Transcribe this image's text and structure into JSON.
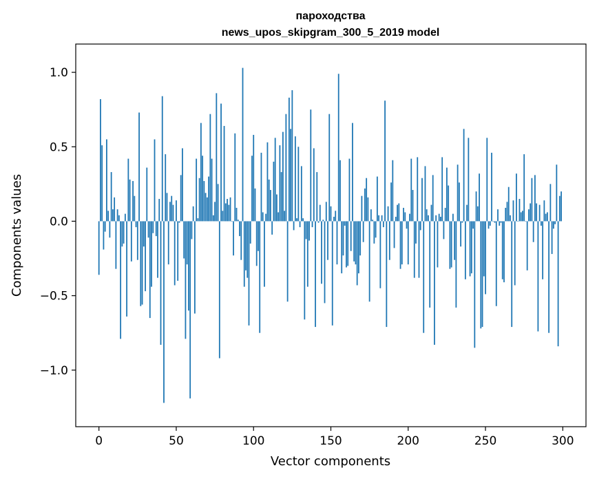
{
  "chart_data": {
    "type": "bar",
    "title": "пароходства",
    "subtitle": "news_upos_skipgram_300_5_2019 model",
    "xlabel": "Vector components",
    "ylabel": "Components values",
    "xlim": [
      -15,
      315
    ],
    "ylim": [
      -1.38,
      1.19
    ],
    "x_ticks": [
      0,
      50,
      100,
      150,
      200,
      250,
      300
    ],
    "x_tick_labels": [
      "0",
      "50",
      "100",
      "150",
      "200",
      "250",
      "300"
    ],
    "y_ticks": [
      -1.0,
      -0.5,
      0.0,
      0.5,
      1.0
    ],
    "y_tick_labels": [
      "−1.0",
      "−0.5",
      "0.0",
      "0.5",
      "1.0"
    ],
    "bar_color": "#1f77b4",
    "grid": false,
    "legend": "none",
    "x": "0..299 (component index)",
    "values": [
      -0.36,
      0.82,
      0.51,
      -0.19,
      -0.07,
      0.55,
      0.07,
      -0.11,
      0.33,
      0.08,
      0.16,
      -0.32,
      0.08,
      0.04,
      -0.79,
      -0.17,
      -0.15,
      0.05,
      -0.64,
      0.42,
      0.28,
      -0.27,
      0.27,
      0.17,
      -0.04,
      -0.26,
      0.73,
      -0.57,
      -0.56,
      -0.17,
      -0.47,
      0.36,
      -0.11,
      -0.65,
      -0.44,
      -0.08,
      0.55,
      -0.1,
      -0.38,
      0.15,
      -0.83,
      0.84,
      -1.22,
      0.45,
      0.19,
      -0.29,
      0.13,
      0.17,
      0.11,
      -0.43,
      0.14,
      -0.4,
      -0.01,
      0.31,
      0.49,
      -0.25,
      -0.79,
      -0.29,
      -0.6,
      -1.19,
      -0.12,
      0.1,
      -0.62,
      0.42,
      0.02,
      0.29,
      0.66,
      0.44,
      0.27,
      0.19,
      0.16,
      0.3,
      0.72,
      0.42,
      0.04,
      0.13,
      0.86,
      0.25,
      -0.92,
      0.79,
      0.07,
      0.64,
      0.12,
      0.15,
      0.11,
      0.16,
      0.0,
      -0.23,
      0.59,
      0.09,
      0.01,
      -0.1,
      -0.26,
      1.03,
      -0.44,
      -0.33,
      -0.38,
      -0.7,
      -0.15,
      0.44,
      0.58,
      0.22,
      -0.3,
      -0.2,
      -0.75,
      0.46,
      0.06,
      -0.44,
      0.05,
      0.53,
      0.28,
      0.21,
      -0.09,
      0.4,
      0.56,
      0.18,
      0.06,
      0.51,
      0.33,
      0.6,
      0.07,
      0.72,
      -0.54,
      0.83,
      0.62,
      0.88,
      -0.06,
      0.57,
      0.02,
      0.5,
      -0.04,
      0.37,
      0.02,
      -0.66,
      -0.12,
      -0.44,
      -0.13,
      0.75,
      -0.04,
      0.49,
      -0.71,
      0.33,
      -0.01,
      0.11,
      -0.42,
      0.01,
      -0.55,
      0.13,
      -0.26,
      0.72,
      0.1,
      -0.7,
      0.03,
      0.07,
      -0.29,
      0.99,
      0.41,
      -0.35,
      -0.23,
      -0.03,
      -0.31,
      -0.3,
      0.42,
      -0.2,
      0.66,
      -0.27,
      -0.29,
      -0.43,
      -0.35,
      -0.23,
      0.17,
      -0.14,
      0.22,
      0.29,
      0.16,
      -0.54,
      0.08,
      0.01,
      -0.15,
      -0.11,
      0.3,
      0.04,
      -0.45,
      0.04,
      -0.04,
      0.81,
      -0.71,
      0.1,
      -0.26,
      0.26,
      0.41,
      -0.18,
      0.03,
      0.11,
      0.12,
      -0.32,
      -0.29,
      0.09,
      0.06,
      -0.05,
      -0.29,
      0.05,
      0.42,
      0.21,
      -0.38,
      -0.15,
      0.43,
      -0.38,
      -0.06,
      0.29,
      -0.75,
      0.37,
      0.08,
      0.04,
      -0.58,
      0.11,
      0.31,
      -0.83,
      0.04,
      -0.31,
      0.05,
      0.03,
      0.43,
      -0.12,
      0.09,
      0.36,
      0.24,
      -0.32,
      -0.31,
      0.05,
      -0.26,
      -0.58,
      0.38,
      0.26,
      -0.17,
      -0.01,
      0.62,
      -0.39,
      0.11,
      0.56,
      -0.37,
      -0.35,
      -0.05,
      -0.85,
      0.2,
      0.1,
      0.32,
      -0.72,
      -0.71,
      -0.37,
      -0.49,
      0.56,
      -0.05,
      -0.03,
      0.46,
      0.0,
      -0.01,
      -0.57,
      0.08,
      -0.03,
      -0.01,
      -0.39,
      -0.41,
      0.09,
      0.13,
      0.23,
      0.04,
      -0.71,
      0.14,
      -0.43,
      0.32,
      0.0,
      0.15,
      0.06,
      0.07,
      0.45,
      0.0,
      -0.33,
      0.08,
      0.12,
      0.29,
      -0.14,
      0.31,
      0.12,
      -0.74,
      0.11,
      -0.03,
      -0.39,
      0.14,
      0.05,
      0.06,
      -0.75,
      0.25,
      -0.22,
      -0.05,
      -0.02,
      0.38,
      -0.84,
      0.17,
      0.2
    ]
  }
}
